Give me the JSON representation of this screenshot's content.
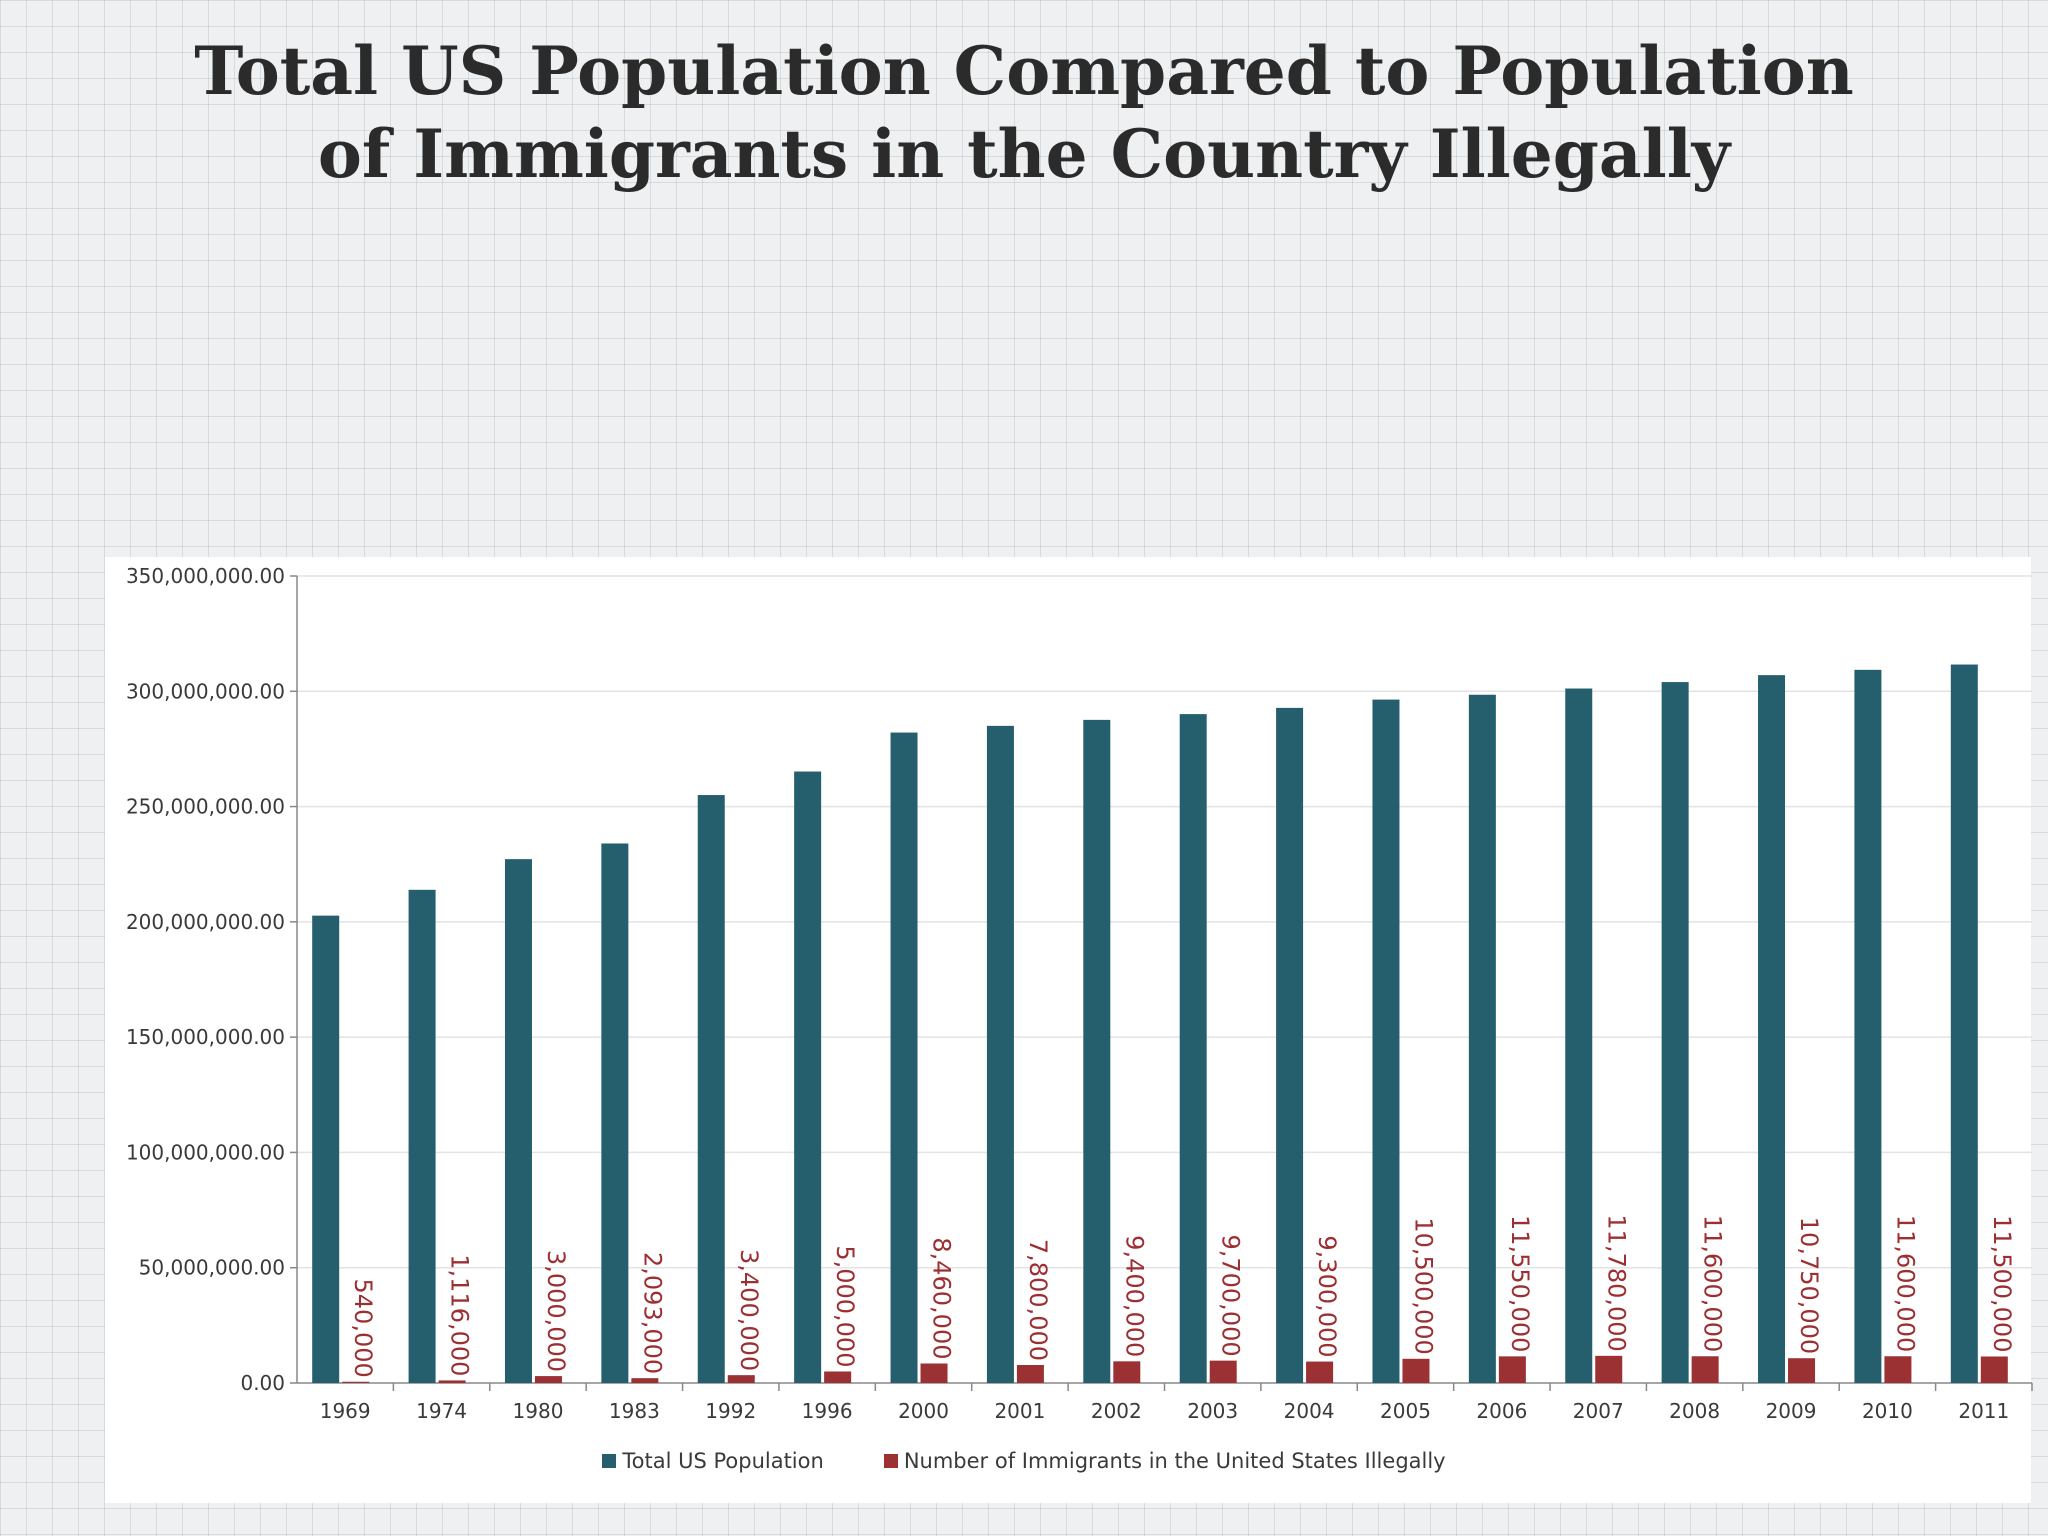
{
  "slide": {
    "title_line1": "Total US Population Compared to Population",
    "title_line2": "of Immigrants in the Country Illegally"
  },
  "colors": {
    "total": "#255f6e",
    "immigrants": "#9b3133"
  },
  "chart_data": {
    "type": "bar",
    "title": "Total US Population Compared to Population of Immigrants in the Country Illegally",
    "categories": [
      "1969",
      "1974",
      "1980",
      "1983",
      "1992",
      "1996",
      "2000",
      "2001",
      "2002",
      "2003",
      "2004",
      "2005",
      "2006",
      "2007",
      "2008",
      "2009",
      "2010",
      "2011"
    ],
    "series": [
      {
        "name": "Total US Population",
        "values": [
          202700000,
          213900000,
          227200000,
          234000000,
          255000000,
          265200000,
          282100000,
          285000000,
          287600000,
          290100000,
          292800000,
          296400000,
          298500000,
          301200000,
          304000000,
          307000000,
          309300000,
          311600000
        ]
      },
      {
        "name": "Number of Immigrants in the United States Illegally",
        "values": [
          540000,
          1116000,
          3000000,
          2093000,
          3400000,
          5000000,
          8460000,
          7800000,
          9400000,
          9700000,
          9300000,
          10500000,
          11550000,
          11780000,
          11600000,
          10750000,
          11600000,
          11500000
        ],
        "data_labels": [
          "540,000",
          "1,116,000",
          "3,000,000",
          "2,093,000",
          "3,400,000",
          "5,000,000",
          "8,460,000",
          "7,800,000",
          "9,400,000",
          "9,700,000",
          "9,300,000",
          "10,500,000",
          "11,550,000",
          "11,780,000",
          "11,600,000",
          "10,750,000",
          "11,600,000",
          "11,500,000"
        ]
      }
    ],
    "ylim": [
      0,
      350000000
    ],
    "yticks": [
      0,
      50000000,
      100000000,
      150000000,
      200000000,
      250000000,
      300000000,
      350000000
    ],
    "ytick_labels": [
      "0.00",
      "50,000,000.00",
      "100,000,000.00",
      "150,000,000.00",
      "200,000,000.00",
      "250,000,000.00",
      "300,000,000.00",
      "350,000,000.00"
    ],
    "xlabel": "",
    "ylabel": "",
    "grid": true,
    "legend": "bottom"
  }
}
